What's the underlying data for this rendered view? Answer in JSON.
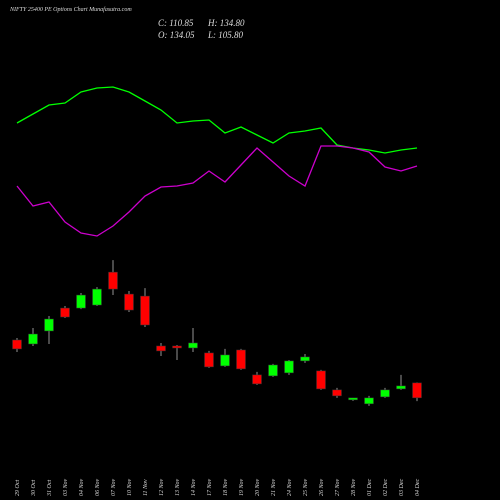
{
  "chart_data": {
    "type": "candlestick",
    "title": "NIFTY 25400 PE Options Chart Munafasutra.com",
    "info": [
      "C: 110.85",
      "H: 134.80",
      "O: 134.05",
      "L: 105.80"
    ],
    "categories": [
      "29 Oct",
      "30 Oct",
      "31 Oct",
      "03 Nov",
      "04 Nov",
      "06 Nov",
      "07 Nov",
      "10 Nov",
      "11 Nov",
      "12 Nov",
      "13 Nov",
      "14 Nov",
      "17 Nov",
      "18 Nov",
      "19 Nov",
      "20 Nov",
      "21 Nov",
      "24 Nov",
      "25 Nov",
      "26 Nov",
      "27 Nov",
      "28 Nov",
      "01 Dec",
      "02 Dec",
      "03 Dec",
      "04 Dec"
    ],
    "open": [
      200.7,
      194.5,
      214.7,
      250.3,
      250.3,
      255,
      306.1,
      272,
      268.9,
      191.4,
      191.4,
      188.3,
      180.6,
      160.4,
      185.2,
      146.5,
      144.9,
      149.6,
      168.2,
      152.7,
      123.2,
      107.7,
      101.5,
      112.3,
      124.7,
      134.05
    ],
    "high": [
      203.8,
      219.3,
      237.9,
      253.4,
      273.6,
      282.9,
      324.7,
      276.7,
      281.3,
      196.1,
      193,
      219.3,
      183.7,
      186.8,
      186.8,
      151.1,
      163.5,
      169.7,
      179,
      154.2,
      126.3,
      110.8,
      113.9,
      126.3,
      146.5,
      134.8
    ],
    "low": [
      182.1,
      191.4,
      194.5,
      234.8,
      248.7,
      253.4,
      270.5,
      244.1,
      220.9,
      175.9,
      169.7,
      182.1,
      157.3,
      158.9,
      154.2,
      131,
      143.4,
      146.5,
      165.1,
      123.2,
      110.8,
      106.1,
      98.4,
      110.8,
      123.2,
      105.8
    ],
    "close": [
      186.8,
      210,
      233.3,
      236.4,
      270.5,
      279.8,
      279.8,
      247.2,
      224,
      183.7,
      188.3,
      196.1,
      158.9,
      177.5,
      155.8,
      132.5,
      161.9,
      168.2,
      174.4,
      124.7,
      113.9,
      110.8,
      110.8,
      123.2,
      129.4,
      110.85
    ],
    "up_color": "#00ff00",
    "down_color": "#ff0000",
    "ylim": [
      50,
      370
    ],
    "y2lim": [
      0,
      170
    ],
    "lines": [
      {
        "color": "#00ff00",
        "values": [
          127,
          136,
          145,
          147,
          158,
          162,
          163,
          158,
          149,
          140,
          127,
          129,
          130,
          117,
          123,
          115,
          107,
          117,
          119,
          122,
          105,
          102,
          100,
          97,
          100,
          102
        ]
      },
      {
        "color": "#cc00cc",
        "values": [
          64,
          44,
          48,
          28,
          17,
          14,
          24,
          38,
          54,
          63,
          64,
          67,
          79,
          68,
          85,
          102,
          88,
          74,
          64,
          104,
          104,
          102,
          98,
          83,
          79,
          84
        ]
      }
    ]
  }
}
